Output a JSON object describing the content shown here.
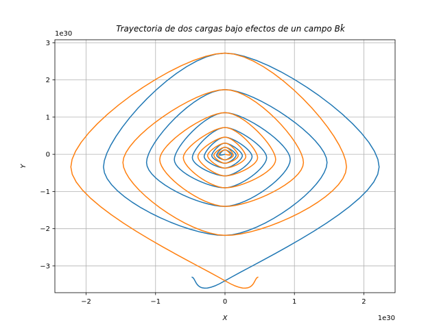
{
  "chart_data": {
    "type": "line",
    "title": "Trayectoria de dos cargas bajo efectos de un campo Bk̂",
    "xlabel": "X",
    "ylabel": "Y",
    "x_offset_text": "1e30",
    "y_offset_text": "1e30",
    "xlim": [
      -2.45,
      2.45
    ],
    "ylim": [
      -3.72,
      3.08
    ],
    "xticks": [
      -2,
      -1,
      0,
      1,
      2
    ],
    "xtick_labels": [
      "−2",
      "−1",
      "0",
      "1",
      "2"
    ],
    "yticks": [
      -3,
      -2,
      -1,
      0,
      1,
      2,
      3
    ],
    "ytick_labels": [
      "−3",
      "−2",
      "−1",
      "0",
      "1",
      "2",
      "3"
    ],
    "grid": true,
    "legend": "none",
    "series": [
      {
        "color": "#1f77b4",
        "spiral": {
          "center": [
            0,
            0
          ],
          "start_point": [
            -0.48,
            -3.3
          ],
          "turns": [
            {
              "right": 2.22,
              "top": 2.72,
              "left": -1.75,
              "bottom": -3.4
            },
            {
              "right": 1.47,
              "top": 1.74,
              "left": -1.13,
              "bottom": -2.18
            },
            {
              "right": 0.94,
              "top": 1.12,
              "left": -0.73,
              "bottom": -1.4
            },
            {
              "right": 0.6,
              "top": 0.72,
              "left": -0.47,
              "bottom": -0.9
            },
            {
              "right": 0.39,
              "top": 0.46,
              "left": -0.3,
              "bottom": -0.58
            },
            {
              "right": 0.25,
              "top": 0.3,
              "left": -0.19,
              "bottom": -0.37
            },
            {
              "right": 0.16,
              "top": 0.19,
              "left": -0.12,
              "bottom": -0.24
            },
            {
              "right": 0.1,
              "top": 0.12,
              "left": -0.08,
              "bottom": -0.15
            }
          ]
        }
      },
      {
        "color": "#ff7f0e",
        "spiral": {
          "center": [
            0,
            0
          ],
          "start_point": [
            0.48,
            -3.3
          ],
          "turns": [
            {
              "left": -2.22,
              "top": 2.72,
              "right": 1.75,
              "bottom": -3.4
            },
            {
              "left": -1.47,
              "top": 1.74,
              "right": 1.13,
              "bottom": -2.18
            },
            {
              "left": -0.94,
              "top": 1.12,
              "right": 0.73,
              "bottom": -1.4
            },
            {
              "left": -0.6,
              "top": 0.72,
              "right": 0.47,
              "bottom": -0.9
            },
            {
              "left": -0.39,
              "top": 0.46,
              "right": 0.3,
              "bottom": -0.58
            },
            {
              "left": -0.25,
              "top": 0.3,
              "right": 0.19,
              "bottom": -0.37
            },
            {
              "left": -0.16,
              "top": 0.19,
              "right": 0.12,
              "bottom": -0.24
            },
            {
              "left": -0.1,
              "top": 0.12,
              "right": 0.08,
              "bottom": -0.15
            }
          ]
        }
      }
    ]
  }
}
